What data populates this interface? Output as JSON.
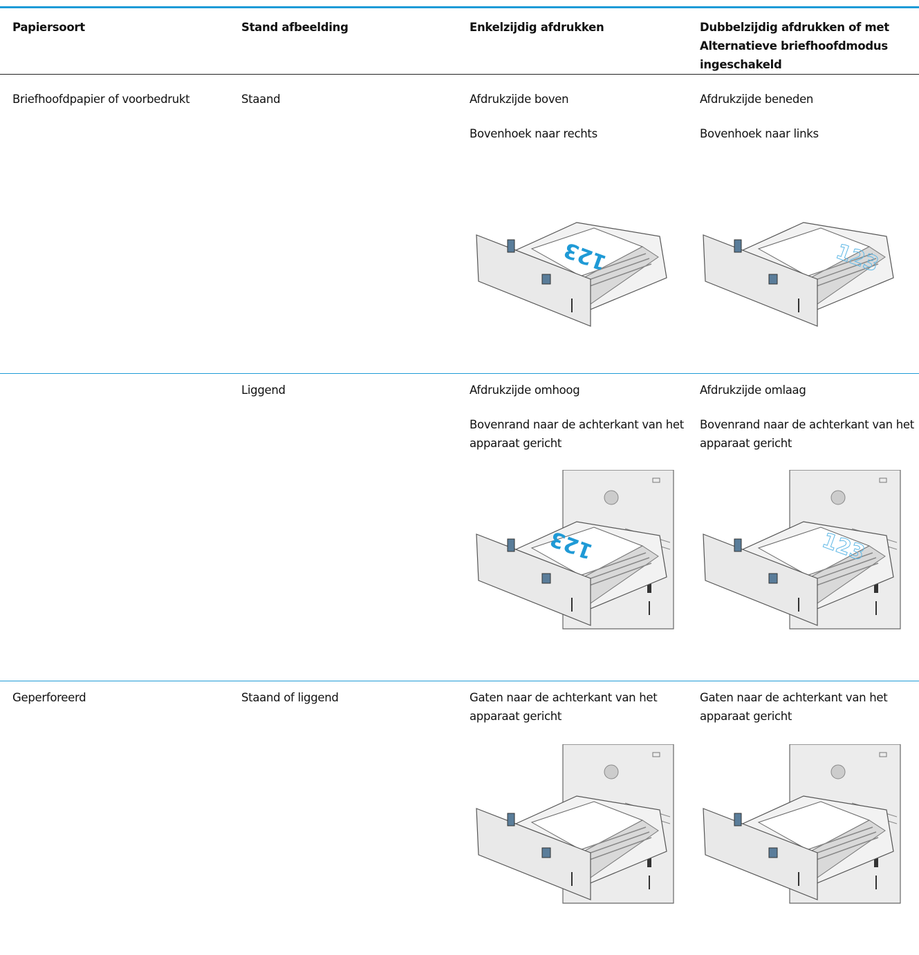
{
  "table": {
    "header": [
      "Papiersoort",
      "Stand afbeelding",
      "Enkelzijdig afdrukken",
      "Dubbelzijdig afdrukken of met Alternatieve briefhoofdmodus ingeschakeld"
    ],
    "rows": [
      {
        "paper_type": "Briefhoofdpapier of voorbedrukt",
        "orientation": "Staand",
        "single": [
          "Afdrukzijde boven",
          "Bovenhoek naar rechts"
        ],
        "duplex": [
          "Afdrukzijde beneden",
          "Bovenhoek naar links"
        ]
      },
      {
        "orientation": "Liggend",
        "single": [
          "Afdrukzijde omhoog",
          "Bovenrand naar de achterkant van het apparaat gericht"
        ],
        "duplex": [
          "Afdrukzijde omlaag",
          "Bovenrand naar de achterkant van het apparaat gericht"
        ]
      },
      {
        "paper_type": "Geperforeerd",
        "orientation": "Staand of liggend",
        "single": [
          "Gaten naar de achterkant van het apparaat gericht"
        ],
        "duplex": [
          "Gaten naar de achterkant van het apparaat gericht"
        ]
      }
    ],
    "tray_label": "123"
  }
}
